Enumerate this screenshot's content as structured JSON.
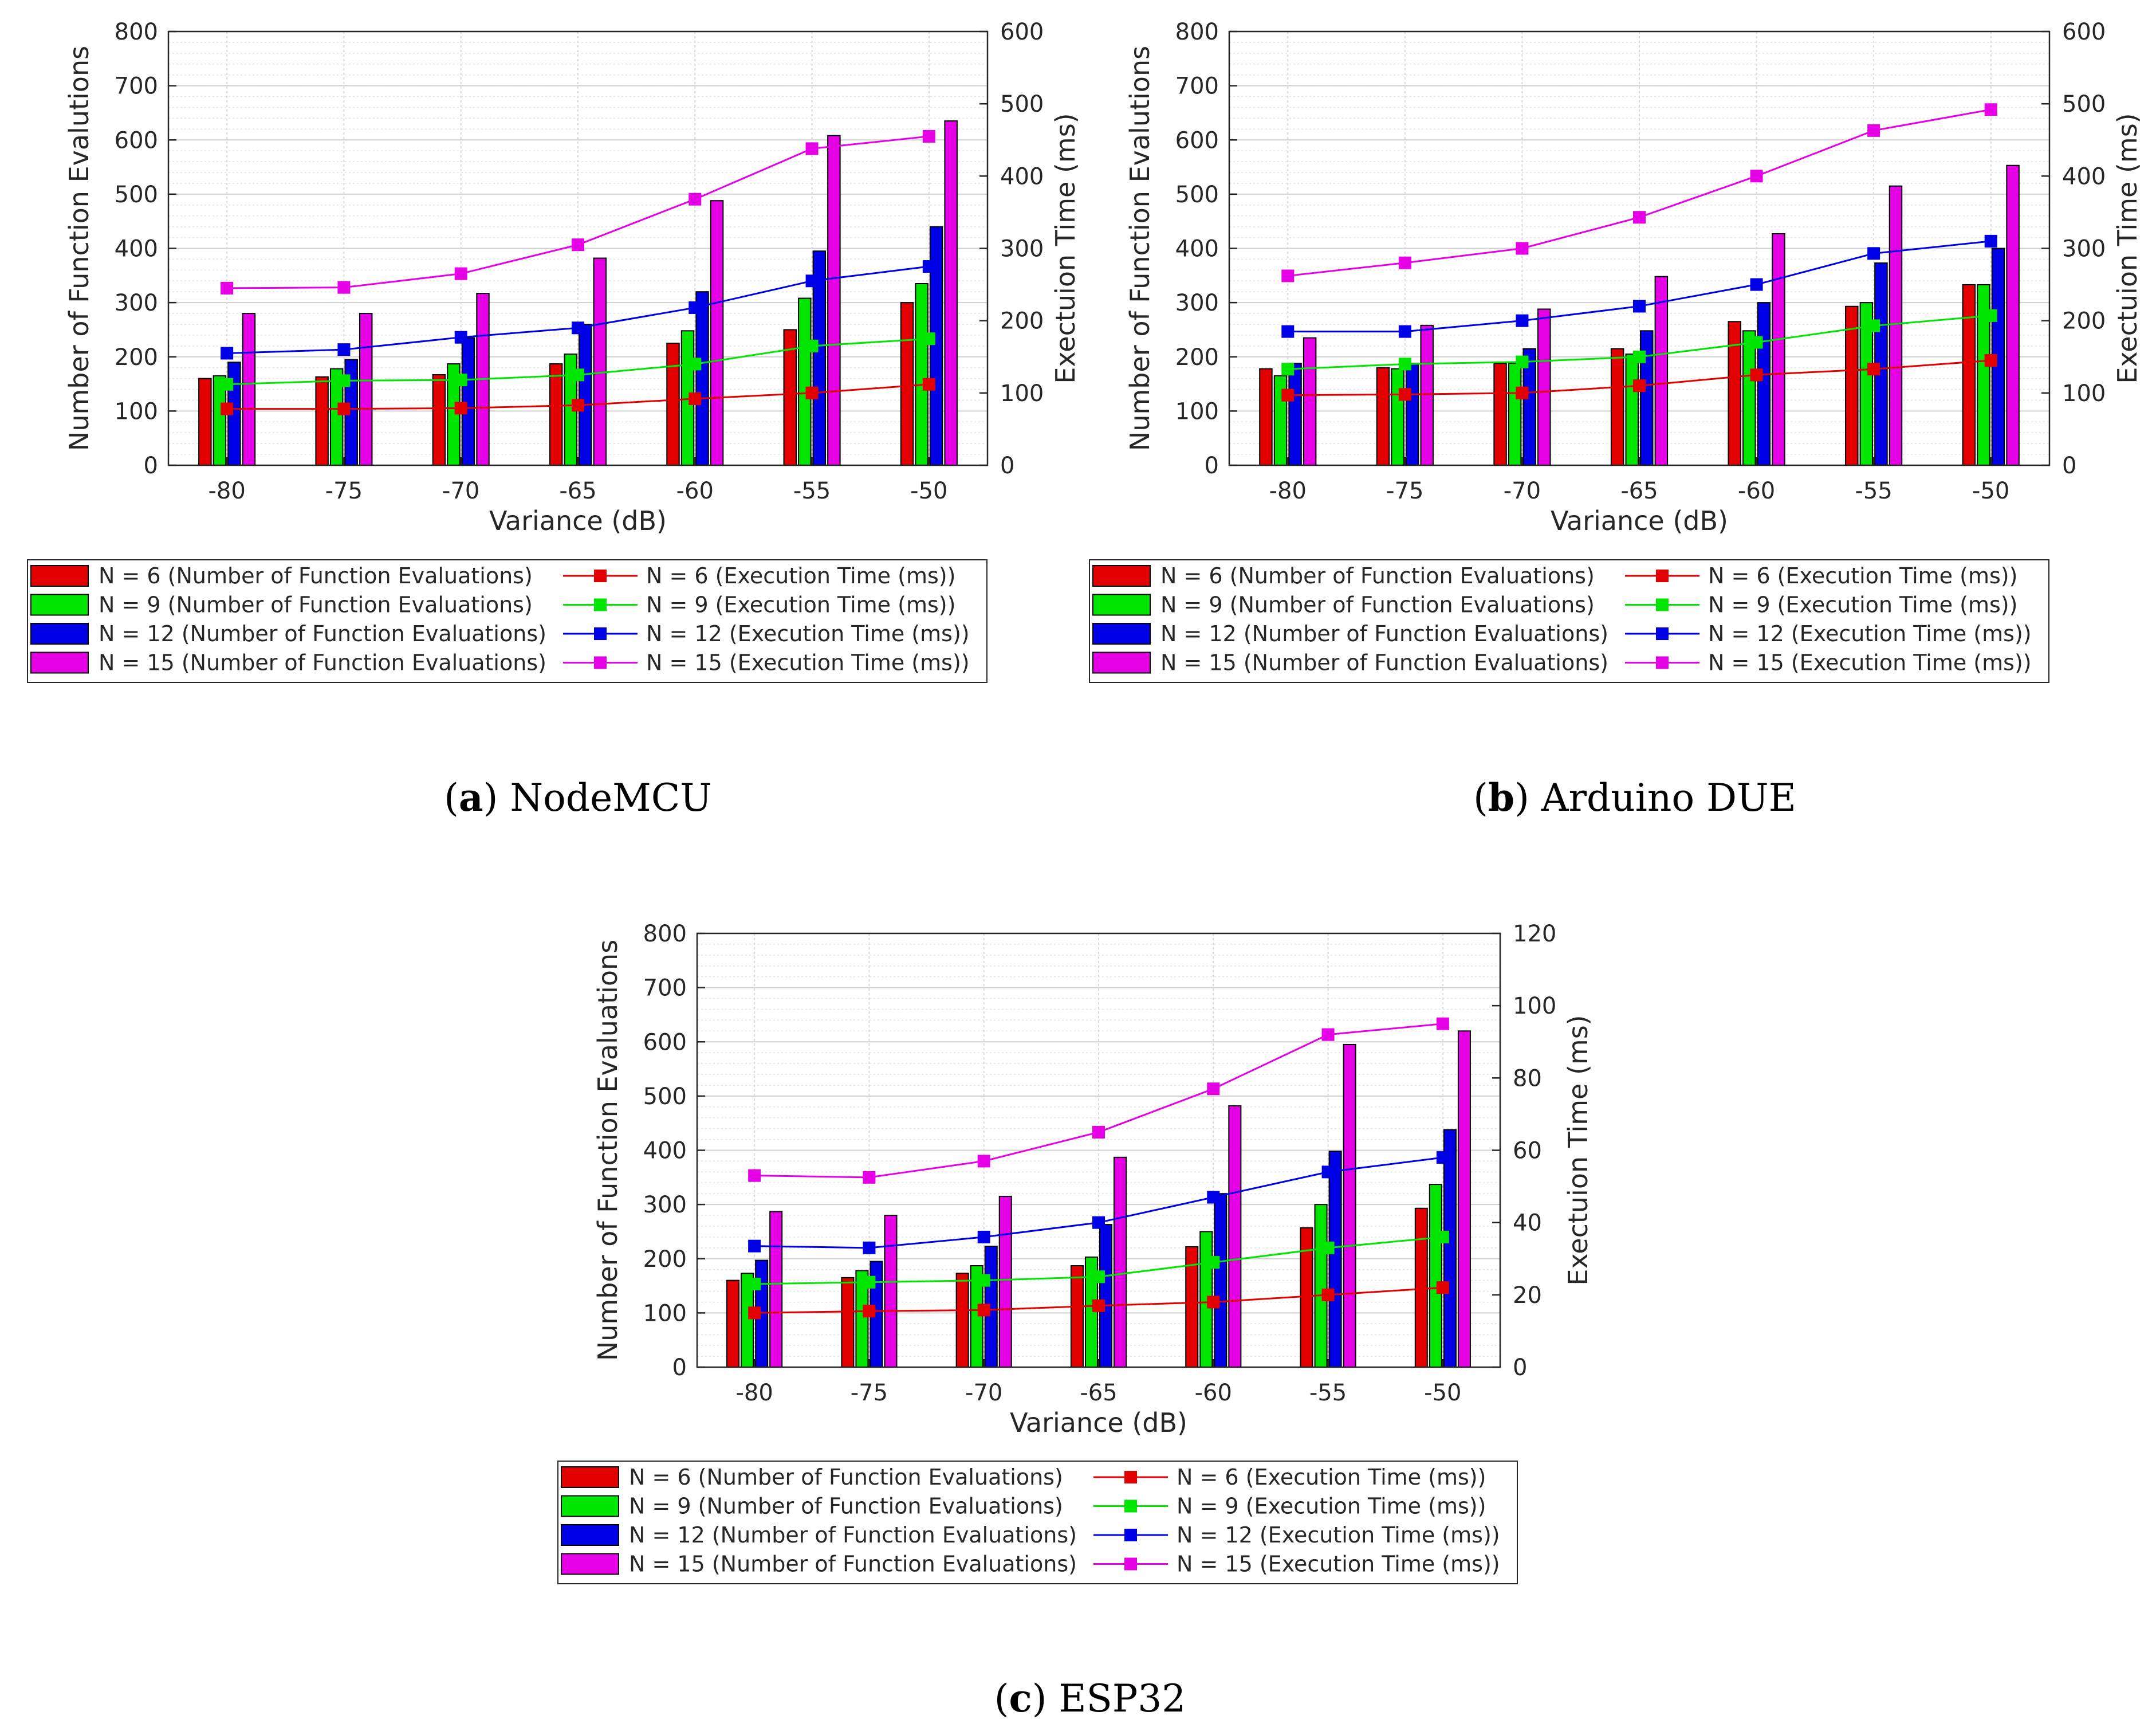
{
  "colors": {
    "n6": "#e30000",
    "n9": "#00e600",
    "n12": "#0000e6",
    "n15": "#e600e6"
  },
  "chart_data": [
    {
      "id": "a",
      "type": "bar+line",
      "caption_key": "a",
      "caption_text": "NodeMCU",
      "xlabel": "Variance (dB)",
      "ylabel_left": "Number of Function Evalutions",
      "ylabel_right": "Exectuion Time (ms)",
      "categories": [
        "-80",
        "-75",
        "-70",
        "-65",
        "-60",
        "-55",
        "-50"
      ],
      "ylim_left": [
        0,
        800
      ],
      "yticks_left": [
        0,
        100,
        200,
        300,
        400,
        500,
        600,
        700,
        800
      ],
      "ylim_right": [
        0,
        600
      ],
      "yticks_right": [
        0,
        100,
        200,
        300,
        400,
        500,
        600
      ],
      "grid": true,
      "bar_series": [
        {
          "name": "N = 6 (Number of Function Evaluations)",
          "color_key": "n6",
          "values": [
            160,
            163,
            167,
            187,
            225,
            250,
            300
          ]
        },
        {
          "name": "N = 9 (Number of Function Evaluations)",
          "color_key": "n9",
          "values": [
            165,
            178,
            187,
            205,
            248,
            308,
            335
          ]
        },
        {
          "name": "N = 12 (Number of Function Evaluations)",
          "color_key": "n12",
          "values": [
            190,
            195,
            235,
            260,
            320,
            395,
            440
          ]
        },
        {
          "name": "N = 15 (Number of Function Evaluations)",
          "color_key": "n15",
          "values": [
            280,
            280,
            317,
            382,
            488,
            608,
            635
          ]
        }
      ],
      "line_series": [
        {
          "name": "N = 6 (Execution Time (ms))",
          "color_key": "n6",
          "values": [
            78,
            78,
            79,
            83,
            92,
            100,
            112
          ]
        },
        {
          "name": "N = 9 (Execution Time (ms))",
          "color_key": "n9",
          "values": [
            112,
            117,
            118,
            125,
            140,
            165,
            175
          ]
        },
        {
          "name": "N = 12 (Execution Time (ms))",
          "color_key": "n12",
          "values": [
            155,
            160,
            177,
            190,
            218,
            255,
            275
          ]
        },
        {
          "name": "N = 15 (Execution Time (ms))",
          "color_key": "n15",
          "values": [
            245,
            246,
            265,
            305,
            368,
            438,
            455
          ]
        }
      ]
    },
    {
      "id": "b",
      "type": "bar+line",
      "caption_key": "b",
      "caption_text": "Arduino DUE",
      "xlabel": "Variance (dB)",
      "ylabel_left": "Number of Function Evalutions",
      "ylabel_right": "Exectuion Time (ms)",
      "categories": [
        "-80",
        "-75",
        "-70",
        "-65",
        "-60",
        "-55",
        "-50"
      ],
      "ylim_left": [
        0,
        800
      ],
      "yticks_left": [
        0,
        100,
        200,
        300,
        400,
        500,
        600,
        700,
        800
      ],
      "ylim_right": [
        0,
        600
      ],
      "yticks_right": [
        0,
        100,
        200,
        300,
        400,
        500,
        600
      ],
      "grid": true,
      "bar_series": [
        {
          "name": "N = 6 (Number of Function Evaluations)",
          "color_key": "n6",
          "values": [
            178,
            180,
            188,
            215,
            265,
            293,
            333
          ]
        },
        {
          "name": "N = 9 (Number of Function Evaluations)",
          "color_key": "n9",
          "values": [
            165,
            178,
            188,
            205,
            248,
            300,
            333
          ]
        },
        {
          "name": "N = 12 (Number of Function Evaluations)",
          "color_key": "n12",
          "values": [
            188,
            188,
            215,
            248,
            300,
            373,
            400
          ]
        },
        {
          "name": "N = 15 (Number of Function Evaluations)",
          "color_key": "n15",
          "values": [
            235,
            258,
            288,
            348,
            427,
            515,
            553
          ]
        }
      ],
      "line_series": [
        {
          "name": "N = 6 (Execution Time (ms))",
          "color_key": "n6",
          "values": [
            97,
            98,
            100,
            110,
            125,
            133,
            145
          ]
        },
        {
          "name": "N = 9 (Execution Time (ms))",
          "color_key": "n9",
          "values": [
            133,
            140,
            143,
            150,
            170,
            193,
            207
          ]
        },
        {
          "name": "N = 12 (Execution Time (ms))",
          "color_key": "n12",
          "values": [
            185,
            185,
            200,
            220,
            250,
            293,
            310
          ]
        },
        {
          "name": "N = 15 (Execution Time (ms))",
          "color_key": "n15",
          "values": [
            262,
            280,
            300,
            343,
            400,
            463,
            492
          ]
        }
      ]
    },
    {
      "id": "c",
      "type": "bar+line",
      "caption_key": "c",
      "caption_text": "ESP32",
      "xlabel": "Variance (dB)",
      "ylabel_left": "Number of Function Evaluations",
      "ylabel_right": "Exectuion Time (ms)",
      "categories": [
        "-80",
        "-75",
        "-70",
        "-65",
        "-60",
        "-55",
        "-50"
      ],
      "ylim_left": [
        0,
        800
      ],
      "yticks_left": [
        0,
        100,
        200,
        300,
        400,
        500,
        600,
        700,
        800
      ],
      "ylim_right": [
        0,
        120
      ],
      "yticks_right": [
        0,
        20,
        40,
        60,
        80,
        100,
        120
      ],
      "grid": true,
      "bar_series": [
        {
          "name": "N = 6 (Number of Function Evaluations)",
          "color_key": "n6",
          "values": [
            160,
            165,
            173,
            187,
            222,
            257,
            293
          ]
        },
        {
          "name": "N = 9 (Number of Function Evaluations)",
          "color_key": "n9",
          "values": [
            173,
            178,
            187,
            203,
            250,
            300,
            337
          ]
        },
        {
          "name": "N = 12 (Number of Function Evaluations)",
          "color_key": "n12",
          "values": [
            197,
            195,
            223,
            263,
            320,
            398,
            438
          ]
        },
        {
          "name": "N = 15 (Number of Function Evaluations)",
          "color_key": "n15",
          "values": [
            287,
            280,
            315,
            387,
            482,
            595,
            620
          ]
        }
      ],
      "line_series": [
        {
          "name": "N = 6 (Execution Time (ms))",
          "color_key": "n6",
          "values": [
            15,
            15.5,
            15.8,
            17,
            18,
            20,
            22
          ]
        },
        {
          "name": "N = 9 (Execution Time (ms))",
          "color_key": "n9",
          "values": [
            23,
            23.5,
            24,
            25,
            29,
            33,
            36
          ]
        },
        {
          "name": "N = 12 (Execution Time (ms))",
          "color_key": "n12",
          "values": [
            33.5,
            33,
            36,
            40,
            47,
            54,
            58
          ]
        },
        {
          "name": "N = 15 (Execution Time (ms))",
          "color_key": "n15",
          "values": [
            53,
            52.5,
            57,
            65,
            77,
            92,
            95
          ]
        }
      ]
    }
  ]
}
